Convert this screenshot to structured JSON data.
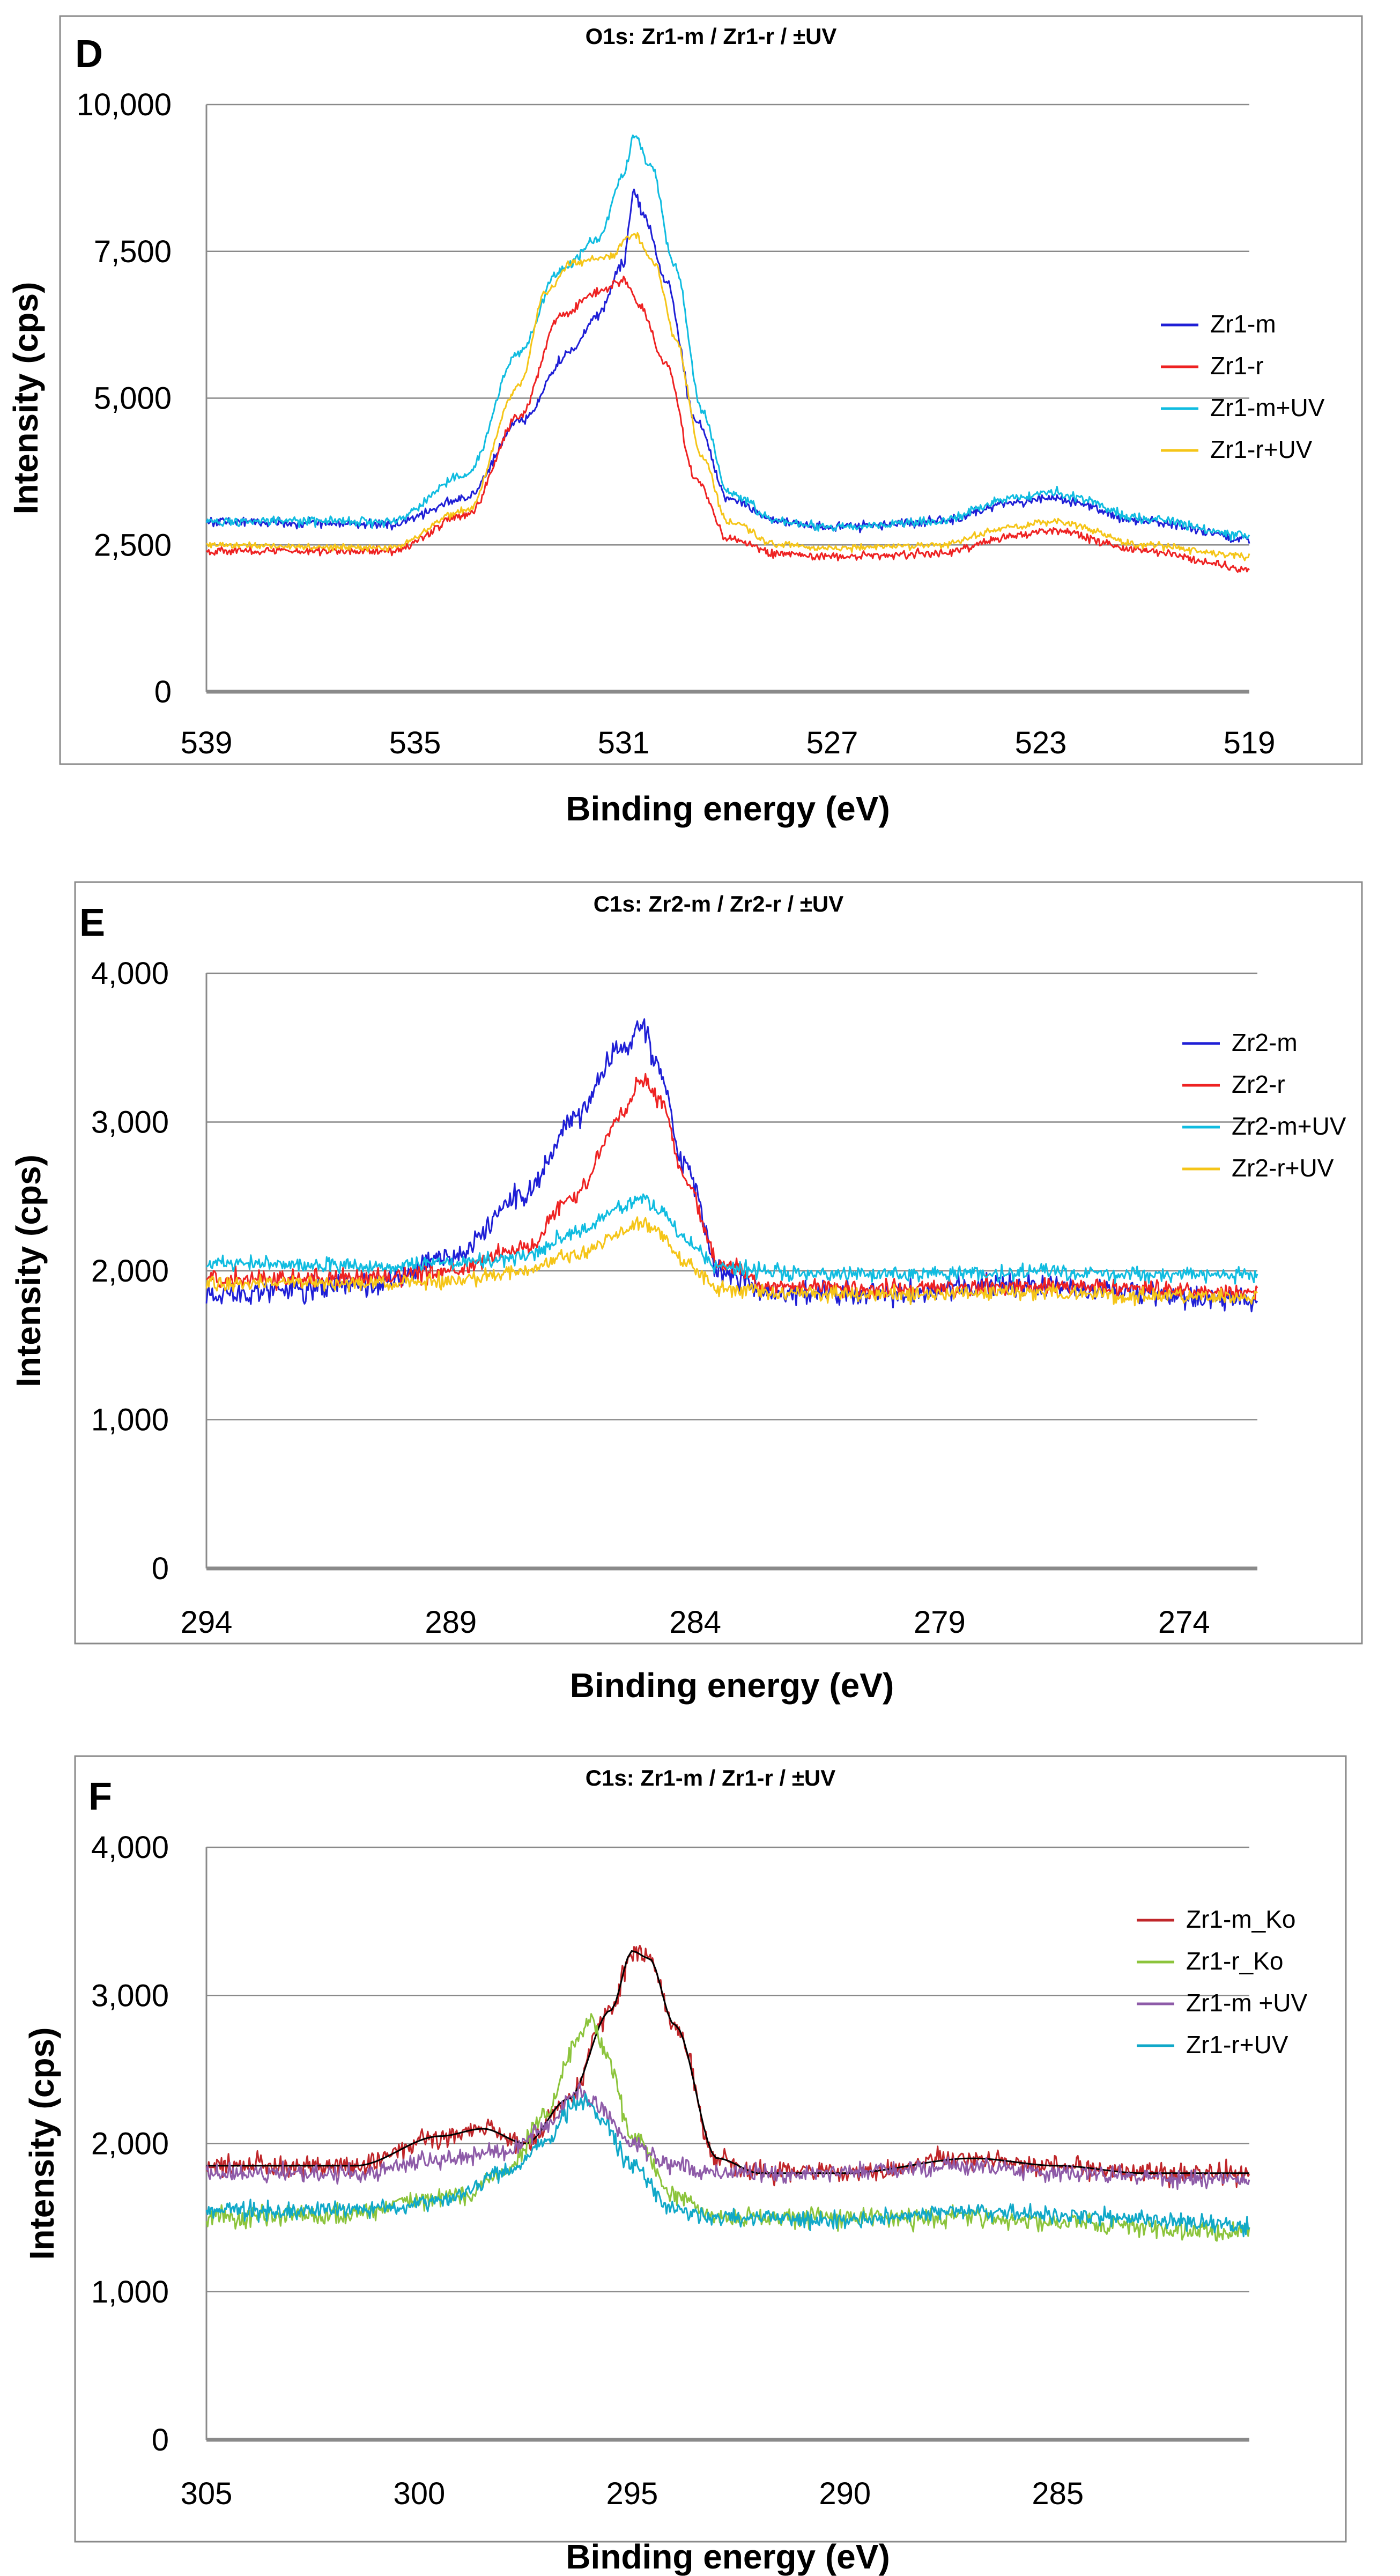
{
  "chart_data": [
    {
      "type": "line",
      "panel": "D",
      "title": "O1s: Zr1-m / Zr1-r / ±UV",
      "xlabel": "Binding energy (eV)",
      "ylabel": "Intensity (cps)",
      "xlim": [
        539,
        519
      ],
      "ylim": [
        0,
        10000
      ],
      "x_ticks": [
        "539",
        "535",
        "531",
        "527",
        "523",
        "519"
      ],
      "y_ticks": [
        "0",
        "2,500",
        "5,000",
        "7,500",
        "10,000"
      ],
      "x_tick_values": [
        539,
        535,
        531,
        527,
        523,
        519
      ],
      "y_tick_values": [
        0,
        2500,
        5000,
        7500,
        10000
      ],
      "legend_position": "right",
      "series": [
        {
          "name": "Zr1-m",
          "color": "#1f1fd6",
          "noise": 80,
          "points": [
            [
              539,
              2900
            ],
            [
              535.5,
              2850
            ],
            [
              534,
              3300
            ],
            [
              533,
              4600
            ],
            [
              532,
              5800
            ],
            [
              531.5,
              6400
            ],
            [
              531.0,
              7300
            ],
            [
              530.8,
              8500
            ],
            [
              530.6,
              8100
            ],
            [
              530.2,
              7000
            ],
            [
              529.6,
              4600
            ],
            [
              529,
              3300
            ],
            [
              528,
              2900
            ],
            [
              527,
              2800
            ],
            [
              525,
              2900
            ],
            [
              523.5,
              3200
            ],
            [
              522.8,
              3300
            ],
            [
              521,
              2900
            ],
            [
              519,
              2600
            ]
          ]
        },
        {
          "name": "Zr1-r",
          "color": "#ee2222",
          "noise": 70,
          "points": [
            [
              539,
              2400
            ],
            [
              535.5,
              2400
            ],
            [
              534,
              3000
            ],
            [
              533,
              4700
            ],
            [
              532.2,
              6400
            ],
            [
              531.5,
              6800
            ],
            [
              531,
              7000
            ],
            [
              530.7,
              6600
            ],
            [
              530.2,
              5600
            ],
            [
              529.6,
              3600
            ],
            [
              529,
              2600
            ],
            [
              528,
              2350
            ],
            [
              527,
              2300
            ],
            [
              525,
              2350
            ],
            [
              523.5,
              2650
            ],
            [
              522.8,
              2750
            ],
            [
              521,
              2400
            ],
            [
              519,
              2100
            ]
          ]
        },
        {
          "name": "Zr1-m+UV",
          "color": "#10bce0",
          "noise": 80,
          "points": [
            [
              539,
              2900
            ],
            [
              535.5,
              2900
            ],
            [
              534,
              3700
            ],
            [
              533,
              5800
            ],
            [
              532.2,
              7200
            ],
            [
              531.5,
              7700
            ],
            [
              531.0,
              8800
            ],
            [
              530.8,
              9500
            ],
            [
              530.5,
              9000
            ],
            [
              530.0,
              7200
            ],
            [
              529.5,
              4800
            ],
            [
              529,
              3400
            ],
            [
              528,
              2900
            ],
            [
              527,
              2800
            ],
            [
              525,
              2900
            ],
            [
              523.5,
              3300
            ],
            [
              522.8,
              3400
            ],
            [
              521,
              2950
            ],
            [
              519,
              2650
            ]
          ]
        },
        {
          "name": "Zr1-r+UV",
          "color": "#f5c518",
          "noise": 60,
          "points": [
            [
              539,
              2500
            ],
            [
              535.5,
              2450
            ],
            [
              534,
              3100
            ],
            [
              533,
              5200
            ],
            [
              532.5,
              6800
            ],
            [
              532,
              7300
            ],
            [
              531.3,
              7400
            ],
            [
              530.8,
              7800
            ],
            [
              530.4,
              7300
            ],
            [
              530,
              6000
            ],
            [
              529.5,
              4000
            ],
            [
              529,
              2900
            ],
            [
              528,
              2500
            ],
            [
              527,
              2450
            ],
            [
              525,
              2500
            ],
            [
              523.5,
              2800
            ],
            [
              522.8,
              2900
            ],
            [
              521,
              2500
            ],
            [
              519,
              2300
            ]
          ]
        }
      ]
    },
    {
      "type": "line",
      "panel": "E",
      "title": "C1s: Zr2-m / Zr2-r / ±UV",
      "xlabel": "Binding energy (eV)",
      "ylabel": "Intensity (cps)",
      "xlim": [
        294,
        272.5
      ],
      "ylim": [
        0,
        4000
      ],
      "x_ticks": [
        "294",
        "289",
        "284",
        "279",
        "274"
      ],
      "y_ticks": [
        "0",
        "1,000",
        "2,000",
        "3,000",
        "4,000"
      ],
      "x_tick_values": [
        294,
        289,
        284,
        279,
        274
      ],
      "y_tick_values": [
        0,
        1000,
        2000,
        3000,
        4000
      ],
      "legend_position": "top-right",
      "series": [
        {
          "name": "Zr2-m",
          "color": "#1f1fd6",
          "noise": 80,
          "points": [
            [
              294,
              1850
            ],
            [
              290.5,
              1900
            ],
            [
              289,
              2100
            ],
            [
              287.5,
              2500
            ],
            [
              286.5,
              3000
            ],
            [
              285.5,
              3500
            ],
            [
              285.1,
              3650
            ],
            [
              284.8,
              3400
            ],
            [
              284.2,
              2700
            ],
            [
              283.5,
              2000
            ],
            [
              282.5,
              1850
            ],
            [
              280,
              1850
            ],
            [
              277,
              1900
            ],
            [
              275,
              1850
            ],
            [
              272.5,
              1800
            ]
          ]
        },
        {
          "name": "Zr2-r",
          "color": "#ee2222",
          "noise": 60,
          "points": [
            [
              294,
              1950
            ],
            [
              290.5,
              1950
            ],
            [
              289,
              2000
            ],
            [
              287.5,
              2150
            ],
            [
              286.5,
              2500
            ],
            [
              285.5,
              3050
            ],
            [
              285.1,
              3280
            ],
            [
              284.7,
              3150
            ],
            [
              284.2,
              2600
            ],
            [
              283.5,
              2050
            ],
            [
              282.5,
              1900
            ],
            [
              280,
              1880
            ],
            [
              277,
              1900
            ],
            [
              275,
              1880
            ],
            [
              272.5,
              1850
            ]
          ]
        },
        {
          "name": "Zr2-m+UV",
          "color": "#10bce0",
          "noise": 50,
          "points": [
            [
              294,
              2050
            ],
            [
              290.5,
              2030
            ],
            [
              289,
              2050
            ],
            [
              287.5,
              2100
            ],
            [
              286.5,
              2250
            ],
            [
              285.5,
              2420
            ],
            [
              285.1,
              2500
            ],
            [
              284.7,
              2400
            ],
            [
              284.2,
              2200
            ],
            [
              283.5,
              2020
            ],
            [
              282.5,
              1990
            ],
            [
              280,
              1980
            ],
            [
              277,
              1990
            ],
            [
              275,
              1980
            ],
            [
              272.5,
              1970
            ]
          ]
        },
        {
          "name": "Zr2-r+UV",
          "color": "#f5c518",
          "noise": 50,
          "points": [
            [
              294,
              1920
            ],
            [
              290.5,
              1920
            ],
            [
              289,
              1930
            ],
            [
              287.5,
              2000
            ],
            [
              286.5,
              2100
            ],
            [
              285.5,
              2250
            ],
            [
              285.1,
              2330
            ],
            [
              284.7,
              2250
            ],
            [
              284.2,
              2050
            ],
            [
              283.5,
              1880
            ],
            [
              282.5,
              1850
            ],
            [
              280,
              1840
            ],
            [
              277,
              1860
            ],
            [
              275,
              1830
            ],
            [
              272.5,
              1820
            ]
          ]
        }
      ]
    },
    {
      "type": "line",
      "panel": "F",
      "title": "C1s: Zr1-m / Zr1-r / ±UV",
      "xlabel": "Binding energy (eV)",
      "ylabel": "Intensity (cps)",
      "xlim": [
        305,
        280.5
      ],
      "ylim": [
        0,
        4000
      ],
      "x_ticks": [
        "305",
        "300",
        "295",
        "290",
        "285"
      ],
      "y_ticks": [
        "0",
        "1,000",
        "2,000",
        "3,000",
        "4,000"
      ],
      "x_tick_values": [
        305,
        300,
        295,
        290,
        285
      ],
      "y_tick_values": [
        0,
        1000,
        2000,
        3000,
        4000
      ],
      "legend_position": "top-right",
      "series": [
        {
          "name": "Zr1-m_Ko",
          "color": "#c0262a",
          "noise": 70,
          "fit_color": "#000000",
          "points": [
            [
              305,
              1850
            ],
            [
              301.5,
              1850
            ],
            [
              299.5,
              2050
            ],
            [
              298.5,
              2100
            ],
            [
              297.5,
              2000
            ],
            [
              296.5,
              2300
            ],
            [
              295.5,
              2900
            ],
            [
              295.0,
              3300
            ],
            [
              294.6,
              3250
            ],
            [
              294.0,
              2800
            ],
            [
              293.0,
              1900
            ],
            [
              292,
              1800
            ],
            [
              290,
              1800
            ],
            [
              287,
              1900
            ],
            [
              285,
              1850
            ],
            [
              283,
              1800
            ],
            [
              280.5,
              1800
            ]
          ]
        },
        {
          "name": "Zr1-r_Ko",
          "color": "#8cc43c",
          "noise": 70,
          "points": [
            [
              305,
              1500
            ],
            [
              302,
              1520
            ],
            [
              299,
              1650
            ],
            [
              298,
              1800
            ],
            [
              297,
              2200
            ],
            [
              296.3,
              2700
            ],
            [
              296.0,
              2850
            ],
            [
              295.6,
              2600
            ],
            [
              295.0,
              2050
            ],
            [
              294.0,
              1650
            ],
            [
              293,
              1500
            ],
            [
              290,
              1500
            ],
            [
              287,
              1500
            ],
            [
              284,
              1450
            ],
            [
              280.5,
              1400
            ]
          ]
        },
        {
          "name": "Zr1-m +UV",
          "color": "#8e5ba8",
          "noise": 60,
          "points": [
            [
              305,
              1800
            ],
            [
              301.5,
              1800
            ],
            [
              299.5,
              1900
            ],
            [
              298,
              1950
            ],
            [
              297,
              2100
            ],
            [
              296.5,
              2300
            ],
            [
              296.2,
              2350
            ],
            [
              295.8,
              2250
            ],
            [
              295.0,
              2000
            ],
            [
              294,
              1850
            ],
            [
              293,
              1800
            ],
            [
              290,
              1800
            ],
            [
              287,
              1850
            ],
            [
              285,
              1800
            ],
            [
              280.5,
              1750
            ]
          ]
        },
        {
          "name": "Zr1-r+UV",
          "color": "#10a8c8",
          "noise": 60,
          "points": [
            [
              305,
              1550
            ],
            [
              302,
              1550
            ],
            [
              299.5,
              1600
            ],
            [
              298,
              1800
            ],
            [
              297,
              2000
            ],
            [
              296.4,
              2250
            ],
            [
              296.1,
              2300
            ],
            [
              295.7,
              2150
            ],
            [
              295.0,
              1850
            ],
            [
              294,
              1550
            ],
            [
              293,
              1500
            ],
            [
              290,
              1480
            ],
            [
              287,
              1550
            ],
            [
              284,
              1500
            ],
            [
              280.5,
              1450
            ]
          ]
        }
      ]
    }
  ]
}
